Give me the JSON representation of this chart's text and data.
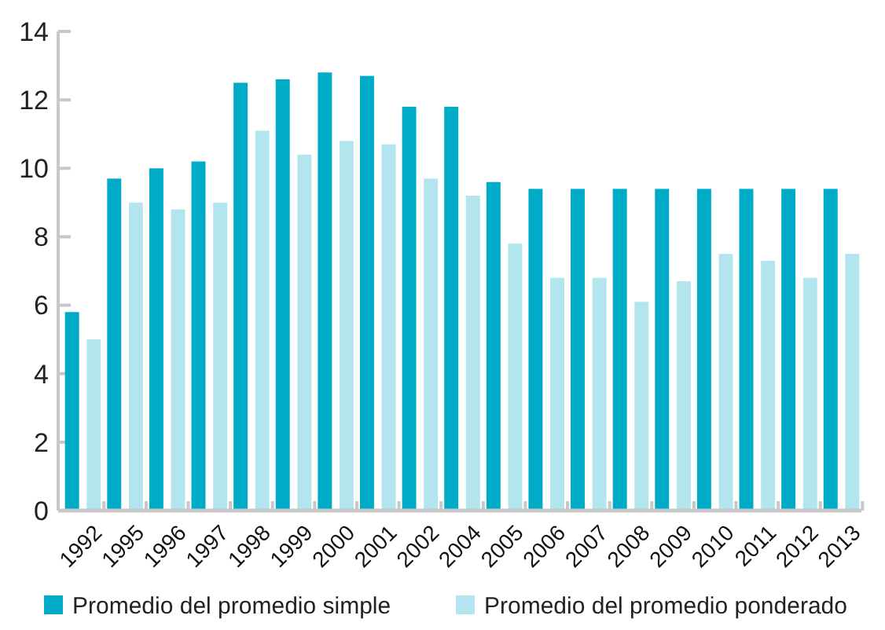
{
  "chart_data": {
    "type": "bar",
    "categories": [
      "1992",
      "1995",
      "1996",
      "1997",
      "1998",
      "1999",
      "2000",
      "2001",
      "2002",
      "2004",
      "2005",
      "2006",
      "2007",
      "2008",
      "2009",
      "2010",
      "2011",
      "2012",
      "2013"
    ],
    "series": [
      {
        "name": "Promedio del promedio simple",
        "color": "#00abc8",
        "values": [
          5.8,
          9.7,
          10.0,
          10.2,
          12.5,
          12.6,
          12.8,
          12.7,
          11.8,
          11.8,
          9.6,
          9.4,
          9.4,
          9.4,
          9.4,
          9.4,
          9.4,
          9.4,
          9.4
        ]
      },
      {
        "name": "Promedio del promedio ponderado",
        "color": "#b3e5ef",
        "values": [
          5.0,
          9.0,
          8.8,
          9.0,
          11.1,
          10.4,
          10.8,
          10.7,
          9.7,
          9.2,
          7.8,
          6.8,
          6.8,
          6.1,
          6.7,
          7.5,
          7.3,
          6.8,
          7.5
        ]
      }
    ],
    "ylim": [
      0,
      14
    ],
    "yticks": [
      0,
      2,
      4,
      6,
      8,
      10,
      12,
      14
    ],
    "grid": false,
    "legend": "bottom"
  }
}
